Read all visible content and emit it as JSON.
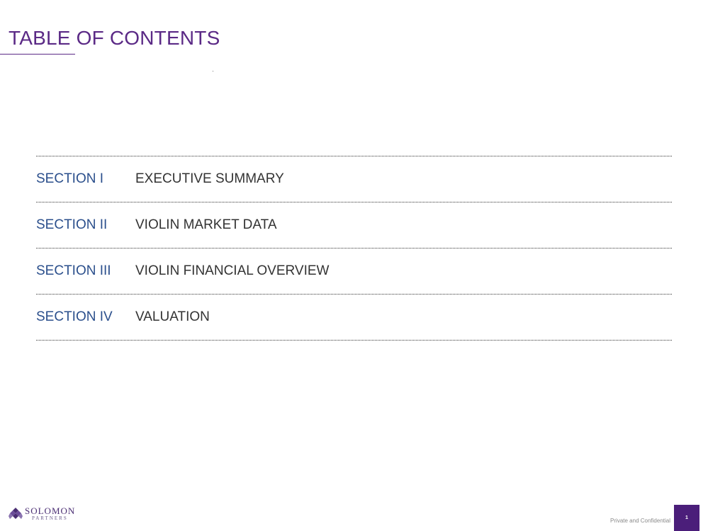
{
  "page": {
    "title": "TABLE OF CONTENTS"
  },
  "toc": {
    "items": [
      {
        "section": "SECTION I",
        "name": "EXECUTIVE SUMMARY"
      },
      {
        "section": "SECTION II",
        "name": "VIOLIN MARKET DATA"
      },
      {
        "section": "SECTION III",
        "name": "VIOLIN FINANCIAL OVERVIEW"
      },
      {
        "section": "SECTION IV",
        "name": "VALUATION"
      }
    ]
  },
  "footer": {
    "logo_name": "SOLOMON",
    "logo_sub": "PARTNERS",
    "confidential": "Private and Confidential",
    "page_number": "1"
  },
  "colors": {
    "title": "#5b2a86",
    "section_label": "#2b4f8c",
    "section_name": "#333333",
    "page_box": "#4b1e7a"
  }
}
